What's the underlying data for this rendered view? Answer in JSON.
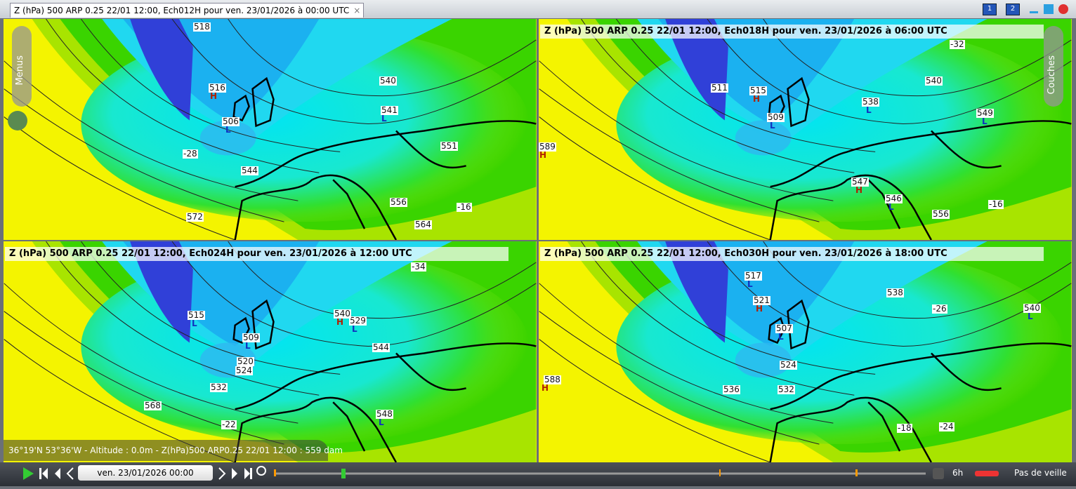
{
  "tab": {
    "title": "Z (hPa) 500 ARP 0.25 22/01 12:00, Ech012H pour ven. 23/01/2026 à 00:00 UTC",
    "close": "×"
  },
  "window_buttons": [
    "1",
    "2"
  ],
  "side": {
    "menus": "Menus",
    "layers": "Couches"
  },
  "panels": [
    {
      "labels": [
        "518",
        "516",
        "H",
        "506",
        "L",
        "540",
        "541",
        "L",
        "544",
        "556",
        "572",
        "-28",
        "551",
        "-16",
        "564"
      ]
    },
    {
      "title": "Z  (hPa) 500 ARP 0.25 22/01 12:00, Ech018H pour ven. 23/01/2026 à 06:00 UTC",
      "labels": [
        "511",
        "515",
        "H",
        "509",
        "L",
        "538",
        "L",
        "549",
        "L",
        "540",
        "547",
        "H",
        "546",
        "L",
        "556",
        "589",
        "H",
        "-32",
        "-16"
      ]
    },
    {
      "title": "Z  (hPa) 500 ARP 0.25 22/01 12:00, Ech024H pour ven. 23/01/2026 à 12:00 UTC",
      "labels": [
        "515",
        "L",
        "509",
        "L",
        "529",
        "L",
        "540",
        "H",
        "544",
        "548",
        "L",
        "520",
        "524",
        "532",
        "568",
        "-22",
        "-34"
      ]
    },
    {
      "title": "Z  (hPa) 500 ARP 0.25 22/01 12:00, Ech030H pour ven. 23/01/2026 à 18:00 UTC",
      "labels": [
        "517",
        "L",
        "521",
        "H",
        "507",
        "L",
        "538",
        "540",
        "L",
        "536",
        "524",
        "532",
        "588",
        "H",
        "-26",
        "-18",
        "-24"
      ]
    }
  ],
  "status": "36°19'N 53°36'W - Altitude : 0.0m -  Z(hPa)500 ARP0.25 22/01 12:00 : 559 dam",
  "toolbar": {
    "date": "ven. 23/01/2026 00:00",
    "step": "6h",
    "standby": "Pas de veille"
  }
}
